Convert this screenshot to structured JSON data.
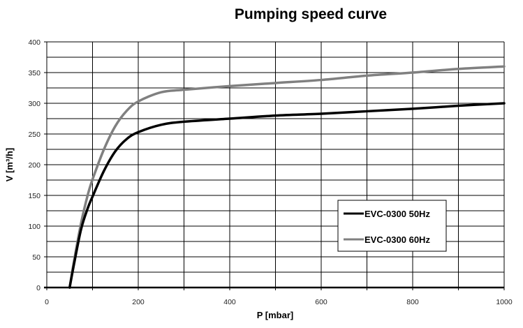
{
  "chart_data": {
    "type": "line",
    "title": "Pumping speed curve",
    "xlabel": "P [mbar]",
    "ylabel": "V [m³/h]",
    "xlim": [
      0,
      1000
    ],
    "ylim": [
      0,
      400
    ],
    "xticks": [
      0,
      200,
      400,
      600,
      800,
      1000
    ],
    "yticks": [
      0,
      50,
      100,
      150,
      200,
      250,
      300,
      350,
      400
    ],
    "grid": true,
    "legend_position": "bottom-right",
    "series": [
      {
        "name": "EVC-0300 50Hz",
        "color": "#000000",
        "x": [
          50,
          60,
          75,
          90,
          100,
          125,
          150,
          175,
          200,
          250,
          300,
          400,
          500,
          600,
          700,
          800,
          900,
          1000
        ],
        "y": [
          0,
          40,
          95,
          130,
          148,
          190,
          222,
          242,
          253,
          265,
          270,
          275,
          280,
          283,
          287,
          291,
          296,
          300
        ]
      },
      {
        "name": "EVC-0300 60Hz",
        "color": "#808080",
        "x": [
          50,
          60,
          75,
          90,
          100,
          125,
          150,
          175,
          200,
          250,
          300,
          400,
          500,
          600,
          700,
          800,
          900,
          1000
        ],
        "y": [
          0,
          45,
          105,
          152,
          176,
          225,
          263,
          288,
          303,
          318,
          322,
          328,
          333,
          338,
          345,
          350,
          356,
          360
        ]
      }
    ]
  }
}
